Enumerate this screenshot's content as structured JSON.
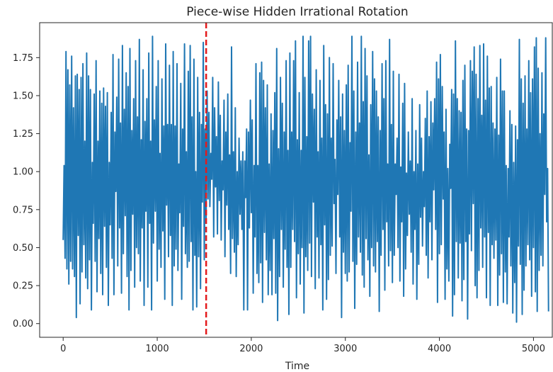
{
  "chart_data": {
    "type": "line",
    "title": "Piece-wise Hidden Irrational Rotation",
    "xlabel": "Time",
    "ylabel": "",
    "xlim": [
      -250,
      5200
    ],
    "ylim": [
      -0.09,
      1.98
    ],
    "x_ticks": [
      0,
      1000,
      2000,
      3000,
      4000,
      5000
    ],
    "x_tick_labels": [
      "0",
      "1000",
      "2000",
      "3000",
      "4000",
      "5000"
    ],
    "y_ticks": [
      0.0,
      0.25,
      0.5,
      0.75,
      1.0,
      1.25,
      1.5,
      1.75
    ],
    "y_tick_labels": [
      "0.00",
      "0.25",
      "0.50",
      "0.75",
      "1.00",
      "1.25",
      "1.50",
      "1.75"
    ],
    "grid": false,
    "series": [
      {
        "color": "#1f77b4",
        "x_start": 0,
        "x_step": 10,
        "values": [
          0.55,
          1.04,
          0.43,
          1.79,
          0.36,
          1.67,
          0.26,
          1.57,
          0.41,
          1.76,
          0.36,
          1.42,
          0.31,
          1.63,
          0.04,
          1.64,
          0.58,
          1.54,
          0.13,
          1.62,
          0.34,
          1.71,
          0.52,
          1.2,
          0.3,
          1.78,
          0.23,
          1.63,
          0.42,
          1.54,
          0.09,
          1.06,
          0.66,
          1.51,
          0.41,
          1.73,
          0.21,
          1.2,
          0.56,
          1.53,
          0.33,
          1.45,
          0.19,
          1.55,
          0.64,
          1.43,
          0.37,
          1.52,
          0.12,
          1.06,
          0.65,
          1.39,
          0.43,
          1.77,
          0.19,
          1.26,
          0.87,
          1.49,
          0.38,
          1.74,
          0.63,
          1.32,
          0.2,
          1.83,
          0.46,
          1.41,
          0.71,
          1.65,
          0.31,
          1.56,
          0.09,
          1.81,
          0.35,
          1.27,
          0.72,
          1.48,
          0.24,
          1.73,
          0.5,
          1.36,
          0.46,
          1.87,
          0.28,
          1.21,
          0.63,
          1.67,
          0.12,
          1.33,
          0.74,
          1.48,
          0.24,
          1.78,
          0.66,
          1.2,
          0.09,
          1.89,
          0.53,
          1.34,
          0.74,
          1.56,
          0.28,
          1.73,
          0.49,
          1.12,
          0.37,
          1.61,
          0.61,
          1.3,
          0.16,
          1.84,
          0.78,
          1.31,
          0.44,
          1.7,
          0.58,
          1.31,
          0.12,
          1.79,
          0.38,
          1.3,
          0.49,
          1.71,
          0.35,
          1.05,
          0.73,
          1.58,
          0.16,
          1.28,
          0.64,
          1.84,
          0.46,
          1.13,
          0.37,
          1.66,
          0.41,
          1.83,
          0.54,
          1.36,
          0.09,
          1.74,
          0.45,
          1.0,
          0.11,
          1.62,
          0.44,
          1.39,
          0.23,
          1.31,
          0.8,
          1.85,
          0.42,
          1.28,
          0.69,
          1.53,
          0.82,
          1.39,
          0.77,
          1.12,
          0.95,
          1.62,
          0.57,
          1.42,
          0.9,
          1.23,
          0.59,
          1.59,
          0.81,
          1.37,
          0.55,
          1.07,
          0.88,
          1.47,
          0.44,
          1.26,
          0.78,
          1.51,
          0.62,
          1.11,
          0.33,
          1.82,
          0.56,
          1.13,
          0.47,
          1.42,
          0.31,
          1.0,
          0.52,
          1.22,
          0.72,
          1.07,
          0.62,
          1.13,
          0.09,
          1.07,
          0.83,
          1.28,
          0.09,
          1.26,
          0.63,
          1.47,
          0.73,
          1.34,
          0.2,
          1.04,
          0.57,
          1.71,
          0.33,
          1.04,
          0.27,
          1.65,
          0.4,
          1.72,
          0.14,
          1.6,
          0.6,
          1.42,
          0.42,
          1.57,
          0.19,
          1.05,
          0.35,
          1.38,
          0.19,
          1.27,
          0.56,
          1.52,
          0.2,
          1.81,
          0.02,
          1.15,
          0.31,
          1.62,
          0.62,
          1.45,
          0.24,
          1.26,
          0.49,
          1.73,
          0.37,
          1.14,
          0.06,
          1.78,
          0.37,
          1.26,
          0.62,
          1.73,
          0.54,
          1.86,
          0.17,
          1.21,
          0.46,
          1.52,
          0.26,
          1.14,
          0.5,
          1.89,
          0.07,
          1.62,
          0.44,
          1.23,
          0.35,
          1.86,
          0.53,
          1.89,
          0.31,
          1.51,
          0.8,
          1.41,
          0.23,
          1.67,
          0.57,
          1.13,
          0.3,
          1.6,
          0.52,
          1.22,
          0.09,
          1.83,
          0.65,
          1.44,
          0.16,
          1.38,
          0.29,
          1.75,
          0.45,
          1.22,
          0.51,
          1.71,
          0.79,
          1.08,
          0.33,
          1.34,
          0.85,
          1.6,
          0.57,
          1.36,
          0.04,
          1.51,
          0.47,
          1.27,
          0.33,
          1.57,
          0.28,
          1.7,
          0.34,
          1.19,
          0.74,
          1.89,
          0.41,
          1.53,
          0.1,
          1.26,
          0.39,
          1.72,
          0.57,
          1.32,
          0.47,
          1.89,
          0.32,
          1.46,
          0.24,
          1.81,
          0.56,
          1.63,
          0.42,
          1.11,
          0.18,
          1.44,
          0.5,
          1.79,
          0.38,
          1.61,
          0.34,
          1.53,
          0.54,
          1.36,
          0.08,
          1.27,
          0.45,
          1.71,
          0.62,
          1.48,
          0.22,
          1.73,
          0.67,
          1.05,
          0.38,
          1.87,
          0.48,
          1.31,
          0.27,
          1.66,
          0.45,
          1.05,
          0.85,
          1.22,
          0.5,
          1.64,
          0.28,
          1.03,
          0.67,
          1.45,
          0.18,
          1.58,
          0.36,
          0.99,
          0.58,
          1.26,
          0.72,
          1.07,
          0.47,
          1.48,
          0.26,
          1.0,
          0.62,
          1.27,
          0.16,
          1.05,
          0.39,
          1.44,
          0.7,
          1.22,
          0.51,
          1.0,
          0.77,
          1.35,
          0.45,
          1.53,
          0.3,
          1.23,
          0.67,
          1.46,
          0.42,
          1.32,
          0.88,
          1.48,
          0.62,
          1.72,
          0.14,
          1.61,
          0.46,
          1.77,
          0.52,
          1.56,
          0.82,
          1.26,
          0.16,
          1.41,
          0.36,
          1.02,
          0.28,
          1.18,
          0.89,
          1.54,
          0.05,
          1.51,
          0.19,
          1.86,
          0.54,
          1.48,
          0.3,
          1.4,
          0.53,
          1.39,
          0.15,
          1.6,
          0.29,
          1.7,
          0.54,
          1.28,
          0.03,
          1.27,
          0.59,
          1.73,
          0.48,
          1.66,
          0.79,
          1.82,
          0.25,
          1.64,
          0.17,
          1.48,
          0.35,
          1.83,
          0.63,
          1.37,
          0.37,
          1.84,
          0.57,
          1.47,
          0.17,
          1.76,
          0.6,
          1.55,
          0.12,
          1.56,
          0.52,
          1.32,
          0.43,
          1.28,
          0.55,
          1.62,
          0.12,
          1.24,
          0.32,
          1.74,
          0.46,
          1.53,
          0.14,
          1.53,
          0.34,
          1.04,
          0.13,
          1.02,
          0.57,
          1.4,
          0.38,
          1.31,
          0.07,
          1.06,
          0.27,
          1.3,
          0.01,
          1.21,
          0.51,
          1.87,
          0.39,
          1.61,
          0.06,
          1.45,
          0.22,
          1.63,
          0.38,
          1.28,
          0.52,
          1.73,
          0.42,
          1.52,
          0.18,
          1.61,
          0.5,
          1.82,
          0.21,
          1.88,
          0.08,
          1.68,
          0.35,
          1.25,
          0.45,
          1.65,
          0.38,
          1.38,
          0.85,
          1.88,
          0.67,
          1.02,
          0.08
        ]
      }
    ],
    "vlines": [
      {
        "x": 1520,
        "color": "#e41a1c",
        "style": "dashed"
      }
    ]
  }
}
